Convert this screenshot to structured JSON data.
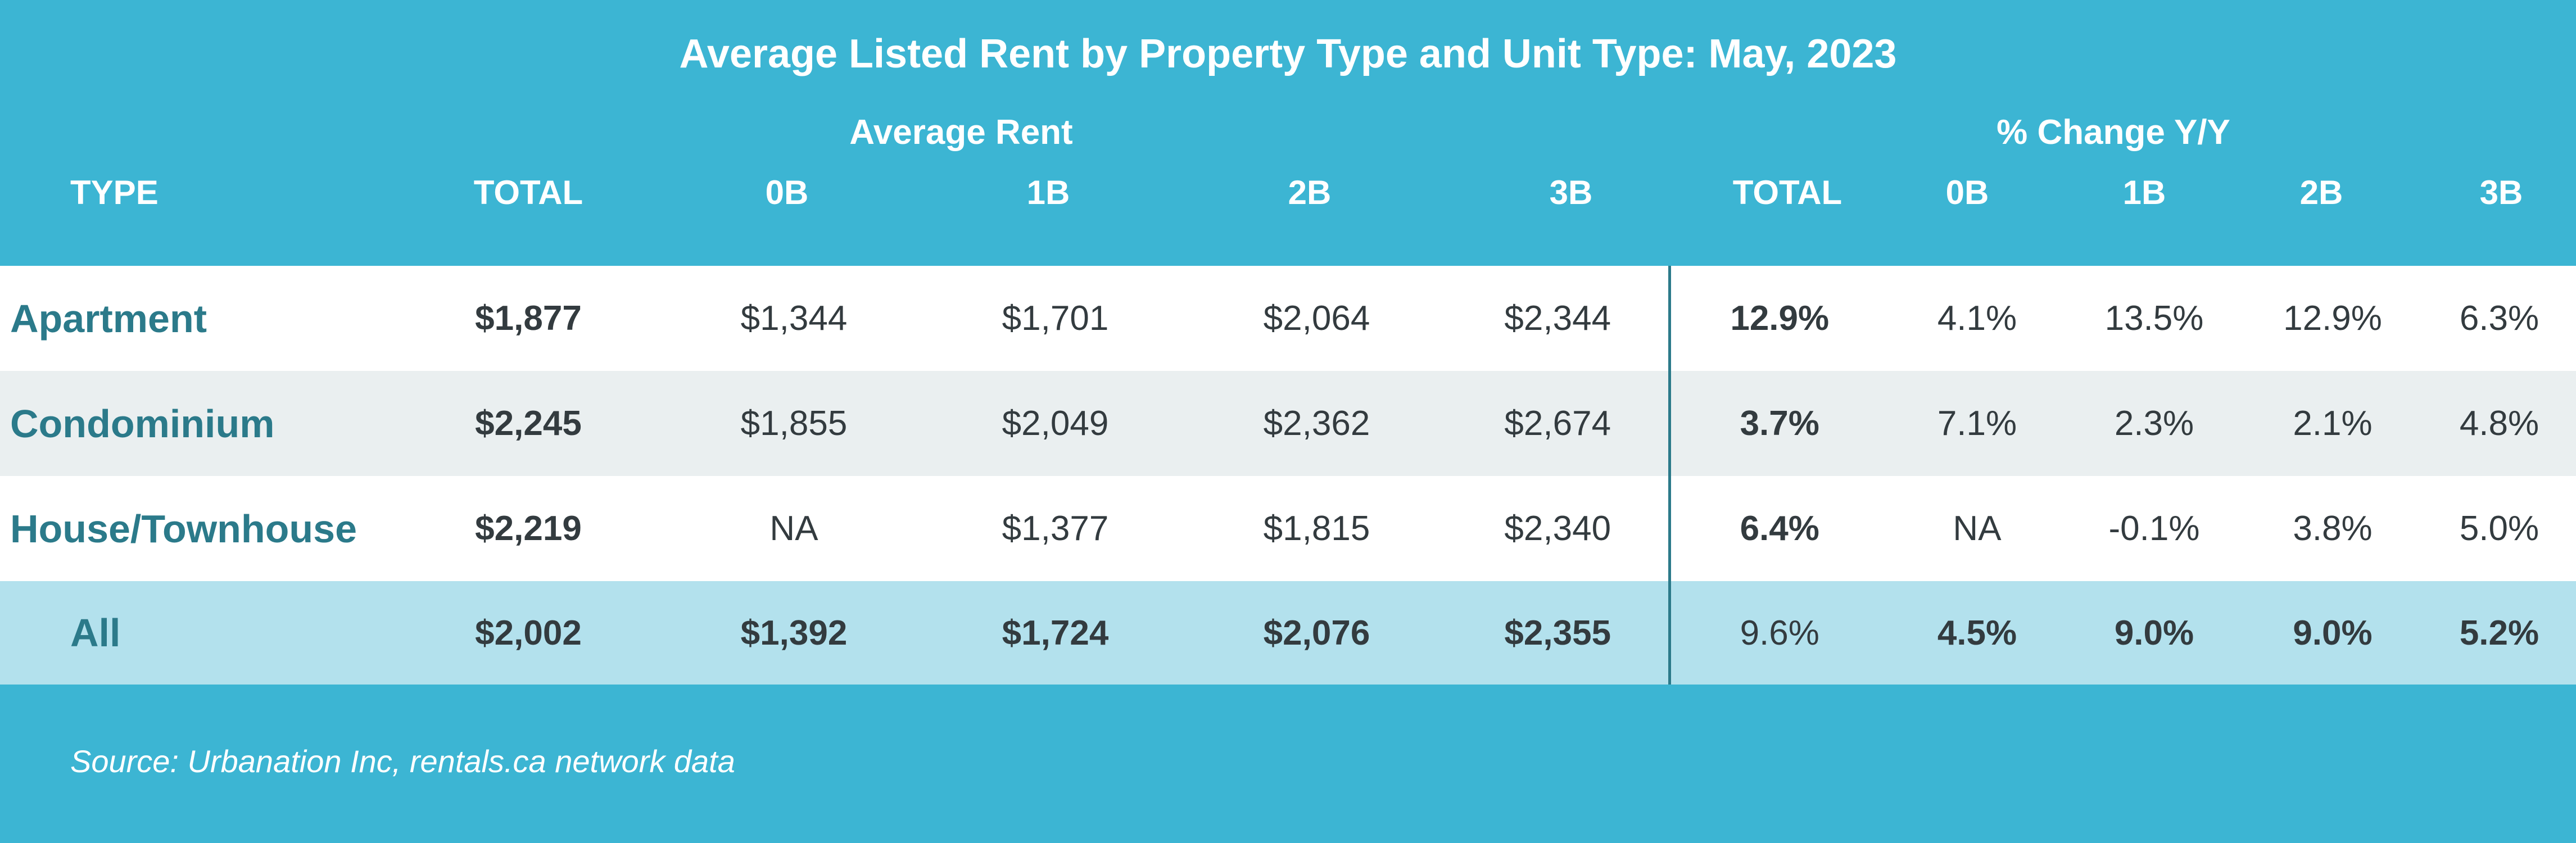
{
  "chart_data": {
    "type": "table",
    "title": "Average Listed Rent by Property Type and Unit Type: May, 2023",
    "column_groups": [
      "Average Rent",
      "% Change Y/Y"
    ],
    "columns": [
      "TYPE",
      "TOTAL",
      "0B",
      "1B",
      "2B",
      "3B",
      "TOTAL",
      "0B",
      "1B",
      "2B",
      "3B"
    ],
    "rows": [
      {
        "type": "Apartment",
        "avg_total": "$1,877",
        "avg_0b": "$1,344",
        "avg_1b": "$1,701",
        "avg_2b": "$2,064",
        "avg_3b": "$2,344",
        "chg_total": "12.9%",
        "chg_0b": "4.1%",
        "chg_1b": "13.5%",
        "chg_2b": "12.9%",
        "chg_3b": "6.3%"
      },
      {
        "type": "Condominium",
        "avg_total": "$2,245",
        "avg_0b": "$1,855",
        "avg_1b": "$2,049",
        "avg_2b": "$2,362",
        "avg_3b": "$2,674",
        "chg_total": "3.7%",
        "chg_0b": "7.1%",
        "chg_1b": "2.3%",
        "chg_2b": "2.1%",
        "chg_3b": "4.8%"
      },
      {
        "type": "House/Townhouse",
        "avg_total": "$2,219",
        "avg_0b": "NA",
        "avg_1b": "$1,377",
        "avg_2b": "$1,815",
        "avg_3b": "$2,340",
        "chg_total": "6.4%",
        "chg_0b": "NA",
        "chg_1b": "-0.1%",
        "chg_2b": "3.8%",
        "chg_3b": "5.0%"
      },
      {
        "type": "All",
        "avg_total": "$2,002",
        "avg_0b": "$1,392",
        "avg_1b": "$1,724",
        "avg_2b": "$2,076",
        "avg_3b": "$2,355",
        "chg_total": "9.6%",
        "chg_0b": "4.5%",
        "chg_1b": "9.0%",
        "chg_2b": "9.0%",
        "chg_3b": "5.2%"
      }
    ],
    "source": "Source: Urbanation Inc, rentals.ca network data"
  },
  "colors": {
    "background": "#3cb5d3",
    "row_white": "#ffffff",
    "row_gray": "#eaeff0",
    "row_all": "#b3e1ed",
    "type_label": "#2b7a8a",
    "value_text": "#333b3f"
  }
}
